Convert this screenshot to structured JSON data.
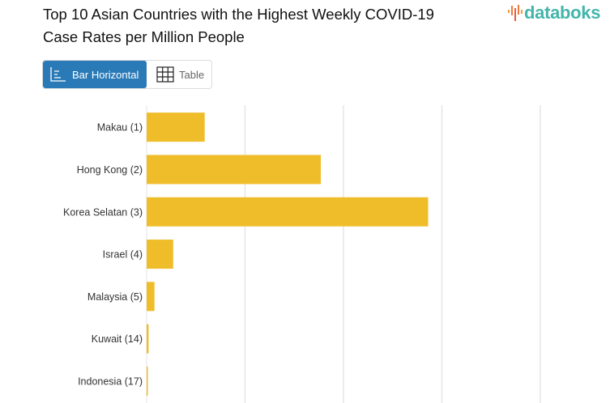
{
  "header": {
    "title": "Top 10 Asian Countries with the Highest Weekly COVID-19 Case Rates per Million People",
    "logo_text": "databoks"
  },
  "view_toggle": {
    "options": [
      {
        "label": "Bar Horizontal",
        "icon": "bar-horizontal-icon",
        "active": true
      },
      {
        "label": "Table",
        "icon": "table-grid-icon",
        "active": false
      }
    ]
  },
  "colors": {
    "bar": "#f0bd2a",
    "active_button": "#2a7ab8",
    "logo": "#44b5aa",
    "gridline": "#e6e6e6"
  },
  "chart_data": {
    "type": "bar",
    "orientation": "horizontal",
    "title": "Top 10 Asian Countries with the Highest Weekly COVID-19 Case Rates per Million People",
    "categories": [
      "Makau (1)",
      "Hong Kong (2)",
      "Korea Selatan (3)",
      "Israel (4)",
      "Malaysia (5)",
      "Kuwait (14)",
      "Indonesia (17)"
    ],
    "values": [
      0.59,
      1.77,
      2.86,
      0.27,
      0.08,
      0.02,
      0.01
    ],
    "value_units_note_hidden": false,
    "xlim": [
      0,
      4.2
    ],
    "grid": true,
    "xlabel": "",
    "ylabel": ""
  }
}
